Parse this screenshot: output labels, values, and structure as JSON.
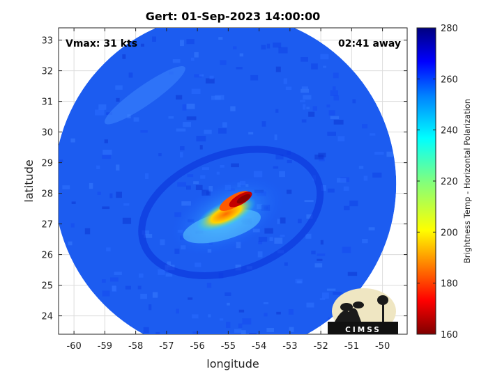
{
  "chart_data": {
    "type": "heatmap",
    "title": "Gert: 01-Sep-2023 14:00:00",
    "annotations": {
      "vmax": "Vmax: 31 kts",
      "time_away": "02:41 away"
    },
    "xlabel": "longitude",
    "ylabel": "latitude",
    "xlim": [
      -60.5,
      -49.2
    ],
    "ylim": [
      23.4,
      33.4
    ],
    "x_ticks": [
      -60,
      -59,
      -58,
      -57,
      -56,
      -55,
      -54,
      -53,
      -52,
      -51,
      -50
    ],
    "y_ticks": [
      24,
      25,
      26,
      27,
      28,
      29,
      30,
      31,
      32,
      33
    ],
    "grid": true,
    "storm_center": {
      "lon": -54.8,
      "lat": 27.6
    },
    "swath_center": {
      "lon": -55.1,
      "lat": 28.3
    },
    "swath_radius_deg": 5.6,
    "colorbar": {
      "label": "Brightness Temp - Horizontal Polarization",
      "range": [
        160,
        280
      ],
      "ticks": [
        160,
        180,
        200,
        220,
        240,
        260,
        280
      ],
      "colormap": "jet"
    },
    "logo": "CIMSS"
  }
}
